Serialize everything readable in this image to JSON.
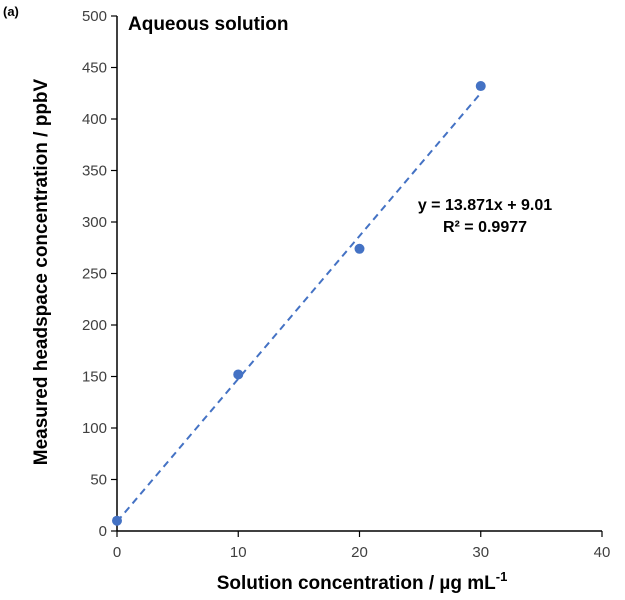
{
  "panel_label": "(a)",
  "chart_data": {
    "type": "scatter",
    "title": "Aqueous solution",
    "xlabel": "Solution concentration / µg mL",
    "xlabel_sup": "-1",
    "ylabel": "Measured headspace concentration / ppbV",
    "xlim": [
      0,
      40
    ],
    "ylim": [
      0,
      500
    ],
    "xticks": [
      0,
      10,
      20,
      30,
      40
    ],
    "yticks": [
      0,
      50,
      100,
      150,
      200,
      250,
      300,
      350,
      400,
      450,
      500
    ],
    "grid": false,
    "series": [
      {
        "x": [
          0,
          10,
          20,
          30
        ],
        "y": [
          10,
          152,
          274,
          432
        ],
        "color": "#4472c4"
      }
    ],
    "trendline": {
      "slope": 13.871,
      "intercept": 9.01,
      "x_range": [
        0,
        30
      ],
      "style": "dashed",
      "color": "#4472c4",
      "equation": "y = 13.871x + 9.01",
      "r_squared": "R² = 0.9977"
    }
  }
}
